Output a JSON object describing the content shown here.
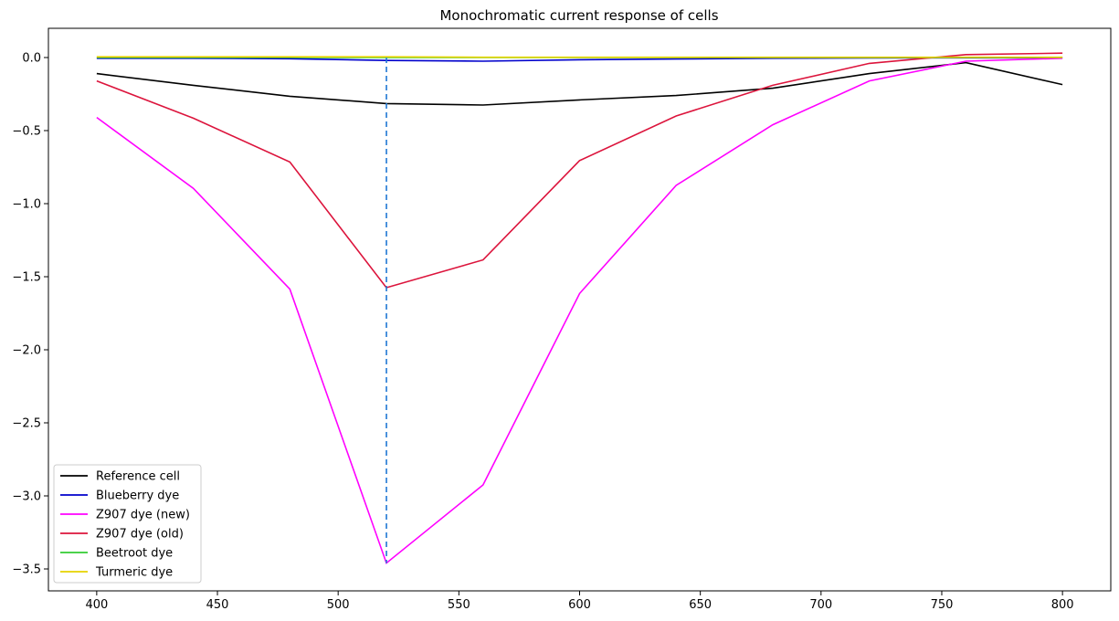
{
  "chart_data": {
    "type": "line",
    "title": "Monochromatic current response of cells",
    "xlabel": "",
    "ylabel": "",
    "xlim": [
      380,
      820
    ],
    "ylim": [
      -3.65,
      0.2
    ],
    "xticks": [
      400,
      450,
      500,
      550,
      600,
      650,
      700,
      750,
      800
    ],
    "yticks": [
      0.0,
      -0.5,
      -1.0,
      -1.5,
      -2.0,
      -2.5,
      -3.0,
      -3.5
    ],
    "x": [
      400,
      440,
      480,
      520,
      560,
      600,
      640,
      680,
      720,
      760,
      800
    ],
    "series": [
      {
        "name": "Reference cell",
        "color": "#000000",
        "values": [
          -0.11,
          -0.19,
          -0.265,
          -0.315,
          -0.325,
          -0.29,
          -0.26,
          -0.21,
          -0.11,
          -0.035,
          -0.185
        ]
      },
      {
        "name": "Blueberry dye",
        "color": "#0000cc",
        "values": [
          -0.005,
          -0.005,
          -0.008,
          -0.02,
          -0.025,
          -0.015,
          -0.01,
          -0.005,
          -0.003,
          -0.002,
          -0.002
        ]
      },
      {
        "name": "Z907 dye (new)",
        "color": "#ff00ff",
        "values": [
          -0.41,
          -0.895,
          -1.585,
          -3.46,
          -2.925,
          -1.615,
          -0.875,
          -0.46,
          -0.16,
          -0.025,
          -0.005
        ]
      },
      {
        "name": "Z907 dye (old)",
        "color": "#dc143c",
        "values": [
          -0.16,
          -0.415,
          -0.715,
          -1.575,
          -1.385,
          -0.705,
          -0.4,
          -0.19,
          -0.04,
          0.02,
          0.03
        ]
      },
      {
        "name": "Beetroot dye",
        "color": "#33cc33",
        "values": [
          0.0,
          0.0,
          0.0,
          0.0,
          0.0,
          0.0,
          0.0,
          0.0,
          0.0,
          0.0,
          0.0
        ]
      },
      {
        "name": "Turmeric dye",
        "color": "#e6d200",
        "values": [
          0.005,
          0.005,
          0.005,
          0.005,
          0.002,
          0.002,
          0.002,
          0.002,
          0.002,
          0.002,
          0.002
        ]
      }
    ],
    "vline": {
      "x": 520,
      "y_from": 0.0,
      "y_to": -3.46,
      "color": "#1f77d4",
      "style": "dashed"
    },
    "legend_position": "bottom-left",
    "grid": false
  }
}
